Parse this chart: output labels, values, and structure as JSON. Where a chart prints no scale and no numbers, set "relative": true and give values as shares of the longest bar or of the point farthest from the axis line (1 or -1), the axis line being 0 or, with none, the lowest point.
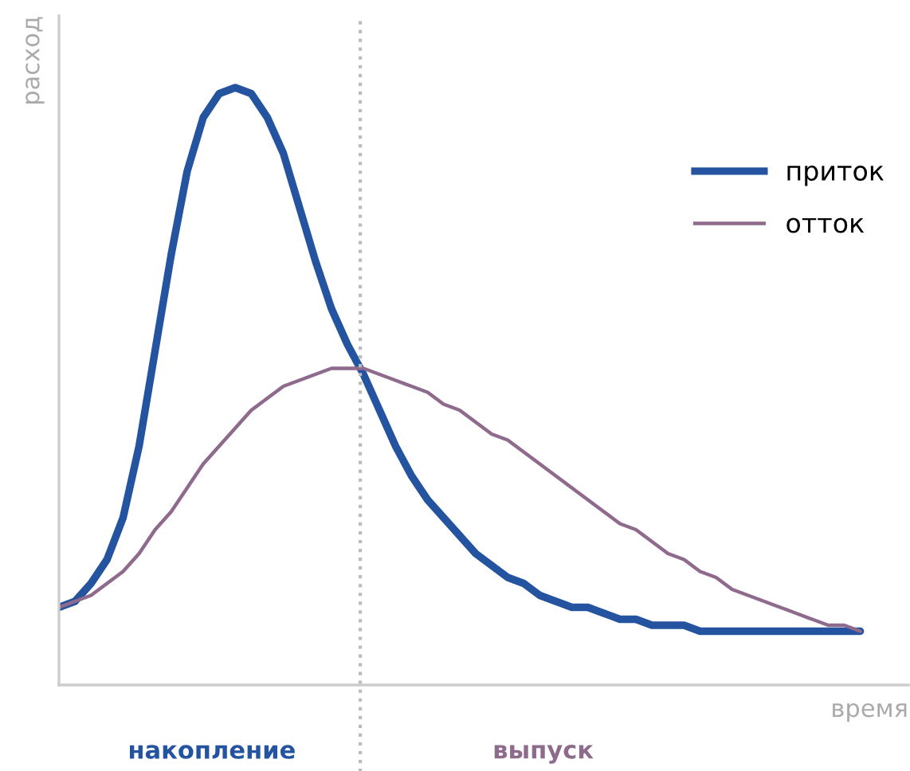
{
  "chart_data": {
    "type": "line",
    "relative": true,
    "xlabel": "время",
    "ylabel": "расход",
    "categories": [
      null,
      null,
      null,
      null,
      null,
      null,
      null,
      null,
      null,
      null,
      null,
      null,
      null,
      null,
      null,
      null,
      null,
      null,
      null,
      null,
      null,
      null,
      null,
      null,
      null,
      null,
      null,
      null,
      null,
      null,
      null,
      null,
      null,
      null,
      null,
      null,
      null,
      null,
      null,
      null,
      null,
      null,
      null,
      null,
      null,
      null,
      null,
      null,
      null,
      null,
      null
    ],
    "series": [
      {
        "name": "приток",
        "color": "#2453a0",
        "values": [
          0.13,
          0.14,
          0.17,
          0.21,
          0.28,
          0.4,
          0.56,
          0.72,
          0.86,
          0.95,
          0.99,
          1.0,
          0.99,
          0.95,
          0.89,
          0.8,
          0.71,
          0.63,
          0.57,
          0.52,
          0.46,
          0.4,
          0.35,
          0.31,
          0.28,
          0.25,
          0.22,
          0.2,
          0.18,
          0.17,
          0.15,
          0.14,
          0.13,
          0.13,
          0.12,
          0.11,
          0.11,
          0.1,
          0.1,
          0.1,
          0.09,
          0.09,
          0.09,
          0.09,
          0.09,
          0.09,
          0.09,
          0.09,
          0.09,
          0.09,
          0.09
        ]
      },
      {
        "name": "отток",
        "color": "#8e6a8c",
        "values": [
          0.13,
          0.14,
          0.15,
          0.17,
          0.19,
          0.22,
          0.26,
          0.29,
          0.33,
          0.37,
          0.4,
          0.43,
          0.46,
          0.48,
          0.5,
          0.51,
          0.52,
          0.53,
          0.53,
          0.53,
          0.52,
          0.51,
          0.5,
          0.49,
          0.47,
          0.46,
          0.44,
          0.42,
          0.41,
          0.39,
          0.37,
          0.35,
          0.33,
          0.31,
          0.29,
          0.27,
          0.26,
          0.24,
          0.22,
          0.21,
          0.19,
          0.18,
          0.16,
          0.15,
          0.14,
          0.13,
          0.12,
          0.11,
          0.1,
          0.1,
          0.09
        ]
      }
    ],
    "annotations": [
      "накопление",
      "выпуск"
    ],
    "legend": "top right",
    "marker": "none",
    "line_style": "solid"
  }
}
